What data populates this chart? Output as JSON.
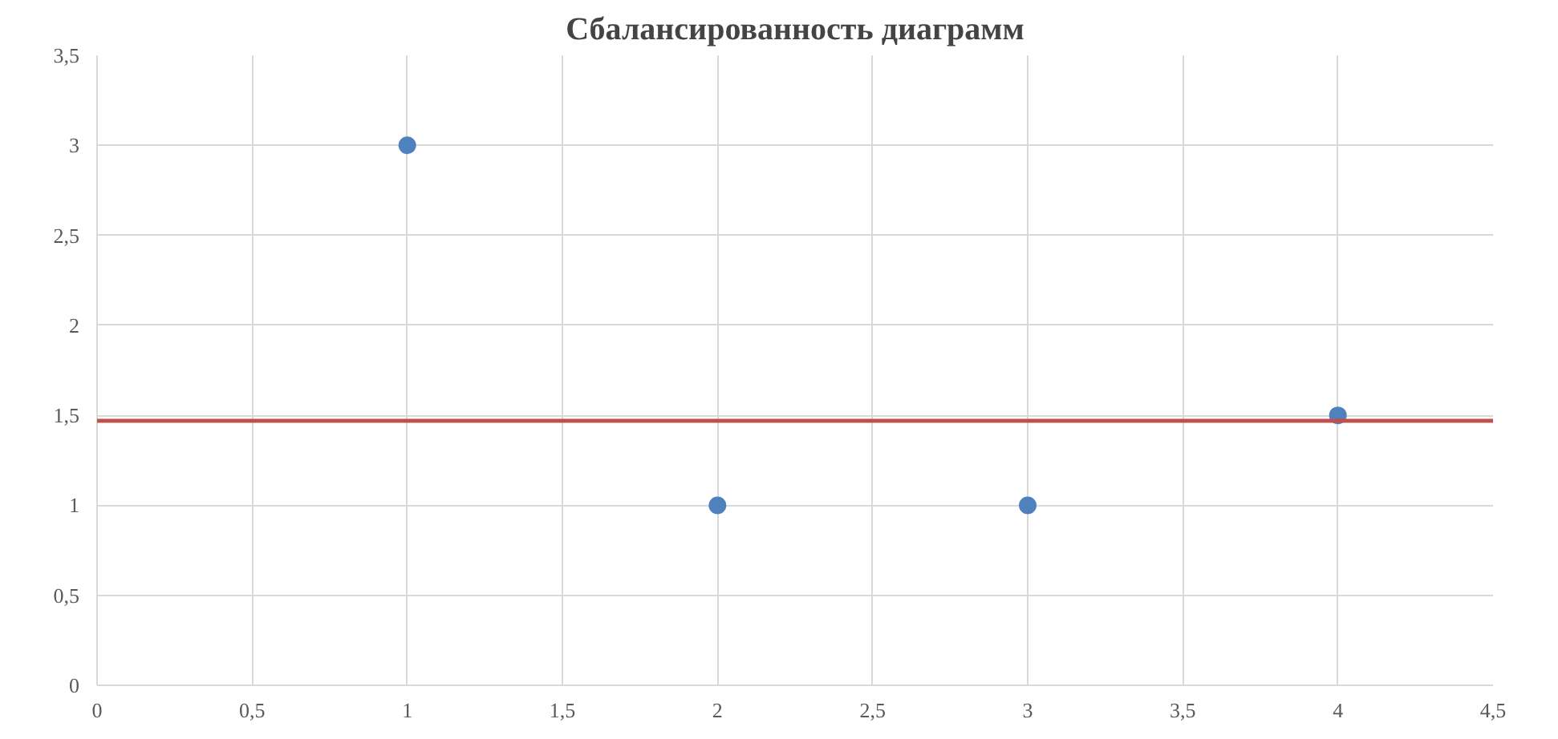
{
  "chart_data": {
    "type": "scatter",
    "title": "Сбалансированность диаграмм",
    "x": [
      1,
      2,
      3,
      4
    ],
    "series": [
      {
        "color": "#4f81bd",
        "values": [
          3,
          1,
          1,
          1.5
        ]
      }
    ],
    "xlim": [
      0,
      4.5
    ],
    "ylim": [
      0,
      3.5
    ],
    "xticks": [
      0,
      {
        "value": 0.5,
        "label": "0,5"
      },
      1,
      {
        "value": 1.5,
        "label": "1,5"
      },
      2,
      {
        "value": 2.5,
        "label": "2,5"
      },
      3,
      {
        "value": 3.5,
        "label": "3,5"
      },
      4,
      {
        "value": 4.5,
        "label": "4,5"
      }
    ],
    "yticks": [
      0,
      {
        "value": 0.5,
        "label": "0,5"
      },
      1,
      {
        "value": 1.5,
        "label": "1,5"
      },
      2,
      {
        "value": 2.5,
        "label": "2,5"
      },
      3,
      {
        "value": 3.5,
        "label": "3,5"
      }
    ],
    "ref_lines": [
      {
        "axis": "y",
        "value": 1.47,
        "color": "#c0504d"
      }
    ],
    "grid": true,
    "marker": "circle"
  }
}
